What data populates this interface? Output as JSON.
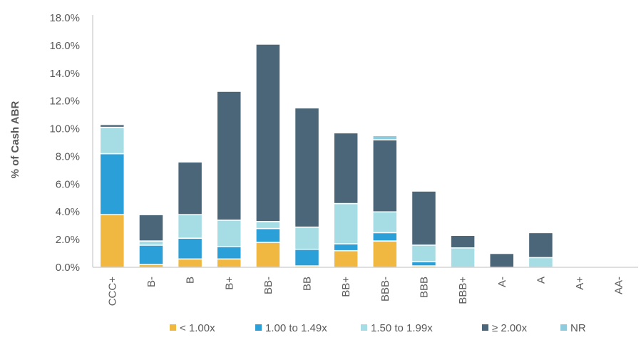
{
  "chart_data": {
    "type": "bar",
    "stacked": true,
    "title": "",
    "xlabel": "",
    "ylabel": "% of Cash ABR",
    "ylim": [
      0,
      18
    ],
    "yticks": [
      "0.0%",
      "2.0%",
      "4.0%",
      "6.0%",
      "8.0%",
      "10.0%",
      "12.0%",
      "14.0%",
      "16.0%",
      "18.0%"
    ],
    "grid": false,
    "legend_position": "bottom",
    "categories": [
      "CCC+",
      "B-",
      "B",
      "B+",
      "BB-",
      "BB",
      "BB+",
      "BBB-",
      "BBB",
      "BBB+",
      "A-",
      "A",
      "A+",
      "AA-"
    ],
    "series": [
      {
        "name": "< 1.00x",
        "color": "#F0B840",
        "values": [
          3.8,
          0.2,
          0.6,
          0.6,
          1.8,
          0.1,
          1.2,
          1.9,
          0.1,
          0.0,
          0.0,
          0.0,
          0.0,
          0.0
        ]
      },
      {
        "name": "1.00 to 1.49x",
        "color": "#2B9FD8",
        "values": [
          4.4,
          1.4,
          1.5,
          0.9,
          1.0,
          1.2,
          0.5,
          0.6,
          0.3,
          0.0,
          0.0,
          0.0,
          0.0,
          0.0
        ]
      },
      {
        "name": "1.50 to 1.99x",
        "color": "#A6DDE5",
        "values": [
          1.9,
          0.3,
          1.7,
          1.9,
          0.5,
          1.6,
          2.9,
          1.5,
          1.2,
          1.4,
          0.0,
          0.7,
          0.0,
          0.0
        ]
      },
      {
        "name": "≥ 2.00x",
        "color": "#4B6678",
        "values": [
          0.2,
          1.9,
          3.8,
          9.3,
          12.8,
          8.6,
          5.1,
          5.2,
          3.9,
          0.9,
          1.0,
          1.8,
          0.0,
          0.0
        ]
      },
      {
        "name": "NR",
        "color": "#8ECBDC",
        "values": [
          0.0,
          0.0,
          0.0,
          0.0,
          0.0,
          0.0,
          0.0,
          0.3,
          0.0,
          0.0,
          0.0,
          0.0,
          0.0,
          0.0
        ]
      }
    ]
  }
}
